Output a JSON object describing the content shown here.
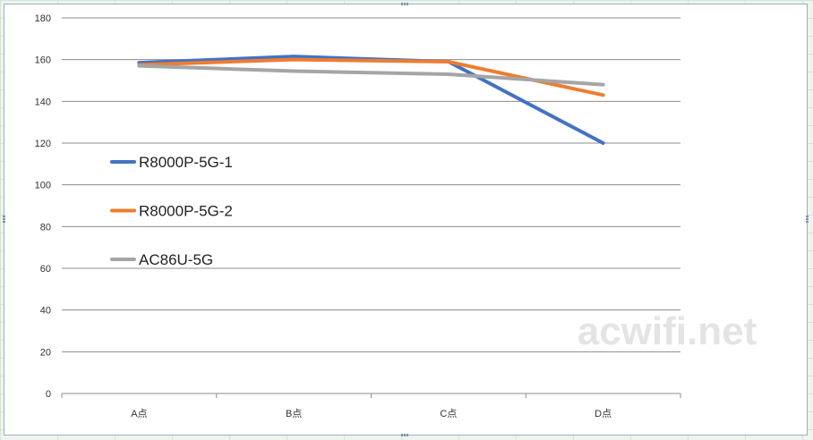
{
  "chart_data": {
    "type": "line",
    "categories": [
      "A点",
      "B点",
      "C点",
      "D点"
    ],
    "series": [
      {
        "name": "R8000P-5G-1",
        "color": "#4472c4",
        "values": [
          158.5,
          161.5,
          159,
          120
        ]
      },
      {
        "name": "R8000P-5G-2",
        "color": "#ed7d31",
        "values": [
          157.5,
          160,
          159,
          143
        ]
      },
      {
        "name": "AC86U-5G",
        "color": "#a5a5a5",
        "values": [
          157,
          154.5,
          153,
          148
        ]
      }
    ],
    "y_ticks": [
      0,
      20,
      40,
      60,
      80,
      100,
      120,
      140,
      160,
      180
    ],
    "ylim": [
      0,
      180
    ],
    "grid": true,
    "legend_position": "left-inside",
    "watermark": "acwifi.net"
  }
}
